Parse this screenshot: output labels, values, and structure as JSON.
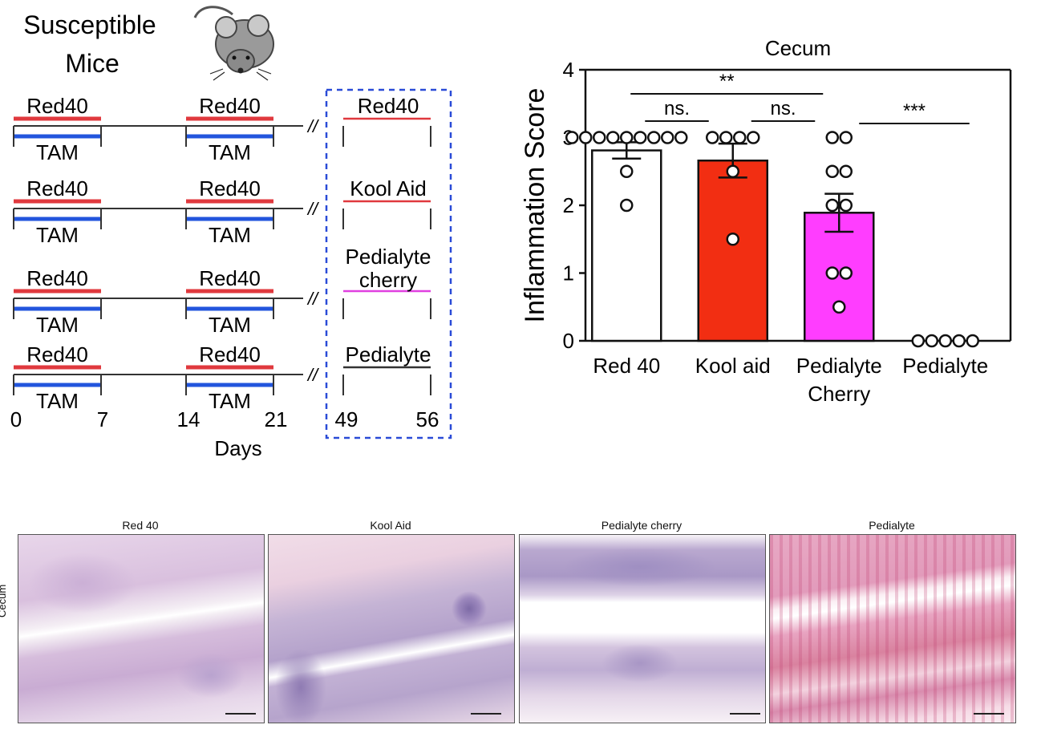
{
  "schematic": {
    "title_line1": "Susceptible",
    "title_line2": "Mice",
    "red_label": "Red40",
    "blue_label": "TAM",
    "treatments": [
      "Red40",
      "Kool Aid",
      "Pedialyte cherry",
      "Pedialyte"
    ],
    "treatment_line_colors": [
      "#e0393e",
      "#e0393e",
      "#e040e0",
      "#333333"
    ],
    "day_ticks": [
      "0",
      "7",
      "14",
      "21",
      "49",
      "56"
    ],
    "xlabel": "Days",
    "break_symbol": "//",
    "colors": {
      "red40": "#e0393e",
      "tam": "#2255dd",
      "dashed_box": "#2a4bd7"
    }
  },
  "chart_data": {
    "type": "bar",
    "title": "Cecum",
    "xlabel": "",
    "ylabel": "Inflammation Score",
    "ylim": [
      0,
      4
    ],
    "yticks": [
      "0",
      "1",
      "2",
      "3",
      "4"
    ],
    "categories": [
      "Red 40",
      "Kool aid",
      "Pedialyte Cherry",
      "Pedialyte"
    ],
    "values": [
      2.81,
      2.66,
      1.89,
      0
    ],
    "sem": [
      0.12,
      0.25,
      0.28,
      0
    ],
    "points": [
      [
        3,
        3,
        3,
        3,
        3,
        3,
        3,
        3,
        3,
        2.5,
        2
      ],
      [
        3,
        3,
        3,
        3,
        2.5,
        1.5
      ],
      [
        3,
        3,
        2.5,
        2.5,
        2,
        2,
        1,
        1,
        0.5
      ],
      [
        0,
        0,
        0,
        0,
        0
      ]
    ],
    "bar_colors": [
      "#ffffff",
      "#f22e12",
      "#ff3dff",
      "#ffffff"
    ],
    "significance": [
      {
        "from": 0,
        "to": 2,
        "label": "**"
      },
      {
        "from": 0,
        "to": 1,
        "label": "ns."
      },
      {
        "from": 1,
        "to": 2,
        "label": "ns."
      },
      {
        "from": 2,
        "to": 3,
        "label": "***"
      }
    ]
  },
  "histology": {
    "row_label": "Cecum",
    "panels": [
      "Red 40",
      "Kool Aid",
      "Pedialyte cherry",
      "Pedialyte"
    ]
  }
}
